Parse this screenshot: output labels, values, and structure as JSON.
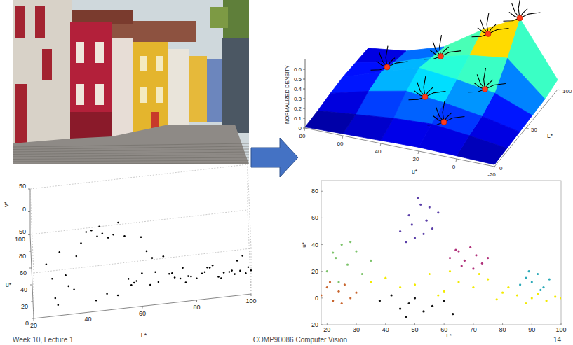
{
  "footer": {
    "left": "Week 10, Lecture 1",
    "center": "COMP90086 Computer Vision",
    "page": 14
  },
  "chart_data": [
    {
      "type": "surface",
      "zlabel": "NORMALIZED DENSITY",
      "xlabel": "u*",
      "ylabel": "L*",
      "x": [
        -20,
        0,
        20,
        40,
        60,
        80
      ],
      "y": [
        0,
        20,
        40,
        60,
        80,
        100
      ],
      "values": [
        [
          0.02,
          0.03,
          0.04,
          0.03,
          0.02,
          0.01
        ],
        [
          0.03,
          0.08,
          0.12,
          0.1,
          0.06,
          0.02
        ],
        [
          0.04,
          0.12,
          0.18,
          0.22,
          0.14,
          0.04
        ],
        [
          0.05,
          0.2,
          0.26,
          0.3,
          0.18,
          0.05
        ],
        [
          0.06,
          0.4,
          0.35,
          0.25,
          0.12,
          0.04
        ],
        [
          0.1,
          0.65,
          0.45,
          0.2,
          0.08,
          0.03
        ]
      ],
      "xlim": [
        -20,
        80
      ],
      "ylim": [
        0,
        100
      ],
      "zlim": [
        0,
        0.7
      ],
      "xticks": [
        -20,
        0,
        20,
        40,
        60,
        80
      ],
      "yticks": [
        0,
        50,
        100
      ],
      "zticks": [
        0,
        0.1,
        0.2,
        0.3,
        0.4,
        0.5,
        0.6
      ],
      "modes": {
        "x": [
          0,
          15,
          35,
          60,
          5,
          30,
          15
        ],
        "y": [
          100,
          95,
          80,
          70,
          60,
          40,
          25
        ],
        "z": [
          0.65,
          0.47,
          0.28,
          0.15,
          0.22,
          0.2,
          0.12
        ],
        "color": "#ff3a1a"
      }
    },
    {
      "type": "scatter3d",
      "xlabel": "L*",
      "ylabel": "u*",
      "zlabel": "v*",
      "color": "#000000",
      "x": [
        25,
        28,
        30,
        32,
        35,
        38,
        40,
        42,
        44,
        45,
        46,
        48,
        50,
        52,
        54,
        55,
        56,
        58,
        60,
        62,
        64,
        65,
        66,
        68,
        70,
        72,
        74,
        75,
        76,
        78,
        80,
        82,
        84,
        85,
        86,
        88,
        90,
        92,
        94,
        95,
        96,
        98,
        100,
        99,
        97,
        93,
        89,
        83,
        77,
        71,
        63,
        57,
        51,
        47,
        43,
        36,
        33,
        29,
        27,
        60
      ],
      "y": [
        30,
        5,
        40,
        20,
        10,
        45,
        55,
        60,
        50,
        65,
        58,
        48,
        52,
        70,
        45,
        10,
        5,
        8,
        12,
        35,
        30,
        15,
        6,
        25,
        10,
        8,
        4,
        12,
        3,
        6,
        2,
        5,
        8,
        15,
        12,
        0,
        3,
        1,
        2,
        10,
        2,
        0,
        1,
        4,
        14,
        6,
        0,
        3,
        9,
        5,
        7,
        3,
        1,
        0,
        0,
        25,
        12,
        2,
        15,
        40
      ],
      "z": [
        10,
        -20,
        15,
        0,
        -15,
        20,
        25,
        18,
        22,
        15,
        12,
        20,
        18,
        10,
        25,
        -5,
        -10,
        -8,
        0,
        5,
        -2,
        -6,
        -12,
        8,
        -4,
        -10,
        -6,
        2,
        -14,
        -8,
        -6,
        -2,
        4,
        -10,
        0,
        -4,
        -2,
        2,
        -6,
        8,
        0,
        -3,
        0,
        2,
        10,
        -5,
        -8,
        4,
        -12,
        6,
        -18,
        -2,
        -22,
        -14,
        -26,
        30,
        -10,
        -30,
        5,
        28
      ],
      "xlim": [
        20,
        100
      ],
      "ylim": [
        0,
        100
      ],
      "zlim": [
        -50,
        50
      ],
      "xticks": [
        20,
        40,
        60,
        80,
        100
      ],
      "yticks": [
        0,
        20,
        40,
        60,
        80,
        100
      ],
      "zticks": [
        -50,
        0,
        50
      ]
    },
    {
      "type": "scatter",
      "xlabel": "L*",
      "ylabel": "u*",
      "xlim": [
        18,
        100
      ],
      "ylim": [
        -20,
        88
      ],
      "xticks": [
        20,
        30,
        40,
        50,
        60,
        70,
        80,
        90,
        100
      ],
      "yticks": [
        -20,
        0,
        20,
        40,
        60,
        80
      ],
      "series": [
        {
          "color": "#5b3fa8",
          "x": [
            45,
            48,
            50,
            52,
            54,
            56,
            58,
            49,
            53,
            47,
            55,
            51
          ],
          "values": [
            50,
            62,
            45,
            70,
            58,
            52,
            64,
            55,
            48,
            42,
            68,
            75
          ]
        },
        {
          "color": "#b0307a",
          "x": [
            62,
            65,
            67,
            69,
            71,
            73,
            66,
            70,
            64,
            75
          ],
          "values": [
            30,
            35,
            28,
            38,
            32,
            26,
            24,
            22,
            36,
            30
          ]
        },
        {
          "color": "#7cc36a",
          "x": [
            20,
            23,
            25,
            27,
            30,
            32,
            35,
            24,
            28,
            22
          ],
          "values": [
            20,
            30,
            40,
            25,
            35,
            18,
            28,
            12,
            42,
            34
          ]
        },
        {
          "color": "#c8652e",
          "x": [
            18,
            20,
            22,
            24,
            26,
            28,
            30,
            21,
            25
          ],
          "values": [
            2,
            8,
            -2,
            5,
            10,
            0,
            4,
            12,
            -4
          ]
        },
        {
          "color": "#111111",
          "x": [
            38,
            42,
            45,
            48,
            50,
            53,
            56,
            60,
            63,
            47
          ],
          "values": [
            -2,
            2,
            -8,
            -4,
            0,
            -10,
            -6,
            -2,
            -12,
            -14
          ]
        },
        {
          "color": "#f2ea00",
          "x": [
            35,
            40,
            45,
            50,
            55,
            60,
            65,
            70,
            75,
            80,
            85,
            90,
            95,
            98,
            100,
            72,
            82,
            88,
            92,
            58,
            62,
            78
          ],
          "values": [
            12,
            15,
            8,
            10,
            18,
            5,
            12,
            8,
            14,
            4,
            2,
            0,
            -2,
            1,
            0,
            18,
            8,
            -4,
            3,
            2,
            20,
            -1
          ]
        },
        {
          "color": "#2aa9b8",
          "x": [
            86,
            88,
            90,
            92,
            94,
            96,
            89,
            93
          ],
          "values": [
            10,
            15,
            12,
            18,
            8,
            14,
            20,
            6
          ]
        }
      ]
    }
  ]
}
